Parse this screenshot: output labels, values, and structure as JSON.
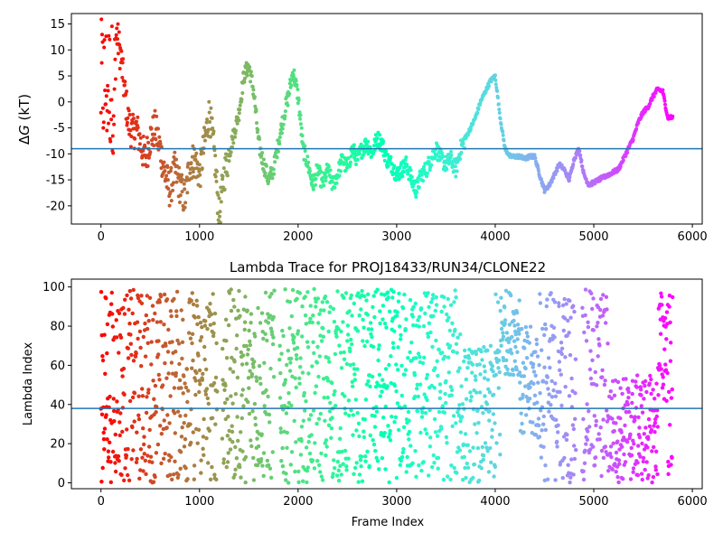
{
  "chart_data": [
    {
      "type": "scatter",
      "title": "",
      "xlabel": "",
      "ylabel_prefix": "Δ",
      "ylabel_var": "G",
      "ylabel_suffix": " (kT)",
      "xlim": [
        -300,
        6100
      ],
      "ylim": [
        -23.5,
        17
      ],
      "xticks": [
        0,
        1000,
        2000,
        3000,
        4000,
        5000,
        6000
      ],
      "yticks": [
        -20,
        -15,
        -10,
        -5,
        0,
        5,
        10,
        15
      ],
      "hline": -9,
      "hline_color": "#1f77b4",
      "colormap": "rainbow-reversed",
      "x_max_frame": 5800,
      "trace": [
        [
          0,
          12
        ],
        [
          40,
          8
        ],
        [
          80,
          5
        ],
        [
          120,
          11
        ],
        [
          160,
          13
        ],
        [
          200,
          9
        ],
        [
          240,
          2
        ],
        [
          280,
          -4
        ],
        [
          320,
          -6
        ],
        [
          360,
          -5
        ],
        [
          400,
          -8
        ],
        [
          450,
          -11
        ],
        [
          500,
          -7
        ],
        [
          550,
          -5
        ],
        [
          600,
          -9
        ],
        [
          650,
          -14
        ],
        [
          700,
          -17
        ],
        [
          750,
          -13
        ],
        [
          800,
          -16
        ],
        [
          850,
          -19
        ],
        [
          900,
          -12
        ],
        [
          950,
          -11
        ],
        [
          1000,
          -14
        ],
        [
          1050,
          -8
        ],
        [
          1100,
          -2
        ],
        [
          1150,
          -10
        ],
        [
          1200,
          -22
        ],
        [
          1250,
          -14
        ],
        [
          1300,
          -10
        ],
        [
          1350,
          -6
        ],
        [
          1400,
          -2
        ],
        [
          1450,
          5
        ],
        [
          1500,
          7
        ],
        [
          1550,
          2
        ],
        [
          1600,
          -8
        ],
        [
          1650,
          -12
        ],
        [
          1700,
          -15
        ],
        [
          1750,
          -13
        ],
        [
          1800,
          -8
        ],
        [
          1850,
          -3
        ],
        [
          1900,
          1
        ],
        [
          1950,
          6
        ],
        [
          2000,
          1
        ],
        [
          2050,
          -9
        ],
        [
          2100,
          -12
        ],
        [
          2150,
          -16
        ],
        [
          2200,
          -13
        ],
        [
          2250,
          -16
        ],
        [
          2300,
          -13
        ],
        [
          2350,
          -16
        ],
        [
          2400,
          -14
        ],
        [
          2450,
          -11
        ],
        [
          2500,
          -13
        ],
        [
          2550,
          -9
        ],
        [
          2600,
          -11
        ],
        [
          2650,
          -9
        ],
        [
          2700,
          -8
        ],
        [
          2750,
          -10
        ],
        [
          2800,
          -7
        ],
        [
          2850,
          -8
        ],
        [
          2900,
          -11
        ],
        [
          2950,
          -12
        ],
        [
          3000,
          -14
        ],
        [
          3050,
          -13
        ],
        [
          3100,
          -12
        ],
        [
          3150,
          -15
        ],
        [
          3200,
          -17
        ],
        [
          3250,
          -14
        ],
        [
          3300,
          -13
        ],
        [
          3350,
          -11
        ],
        [
          3400,
          -9
        ],
        [
          3450,
          -11
        ],
        [
          3500,
          -12
        ],
        [
          3550,
          -11
        ],
        [
          3600,
          -13
        ],
        [
          3650,
          -9
        ],
        [
          3700,
          -7
        ],
        [
          3750,
          -5
        ],
        [
          3800,
          -3
        ],
        [
          3850,
          0
        ],
        [
          3900,
          2
        ],
        [
          3950,
          4
        ],
        [
          4000,
          5
        ],
        [
          4050,
          -3
        ],
        [
          4100,
          -9
        ],
        [
          4150,
          -10.5
        ],
        [
          4200,
          -10.5
        ],
        [
          4250,
          -10.5
        ],
        [
          4300,
          -11
        ],
        [
          4350,
          -10.5
        ],
        [
          4400,
          -10.5
        ],
        [
          4450,
          -14
        ],
        [
          4500,
          -17
        ],
        [
          4550,
          -16
        ],
        [
          4600,
          -14
        ],
        [
          4650,
          -12
        ],
        [
          4700,
          -13
        ],
        [
          4750,
          -15
        ],
        [
          4800,
          -11
        ],
        [
          4850,
          -9
        ],
        [
          4900,
          -14
        ],
        [
          4950,
          -16
        ],
        [
          5000,
          -15.5
        ],
        [
          5050,
          -15
        ],
        [
          5100,
          -14.5
        ],
        [
          5150,
          -14
        ],
        [
          5200,
          -13.5
        ],
        [
          5250,
          -13
        ],
        [
          5300,
          -11
        ],
        [
          5350,
          -9
        ],
        [
          5400,
          -7
        ],
        [
          5450,
          -4
        ],
        [
          5500,
          -2
        ],
        [
          5550,
          -1
        ],
        [
          5600,
          1
        ],
        [
          5650,
          2.5
        ],
        [
          5700,
          2
        ],
        [
          5750,
          -3
        ],
        [
          5800,
          -3
        ]
      ]
    },
    {
      "type": "scatter",
      "title": "Lambda Trace for PROJ18433/RUN34/CLONE22",
      "xlabel": "Frame Index",
      "ylabel": "Lambda Index",
      "xlim": [
        -300,
        6100
      ],
      "ylim": [
        -3,
        104
      ],
      "xticks": [
        0,
        1000,
        2000,
        3000,
        4000,
        5000,
        6000
      ],
      "yticks": [
        0,
        20,
        40,
        60,
        80,
        100
      ],
      "hline": 38,
      "hline_color": "#1f77b4",
      "colormap": "rainbow-reversed",
      "x_max_frame": 5800,
      "lambda_min": 0,
      "lambda_max": 99
    }
  ]
}
